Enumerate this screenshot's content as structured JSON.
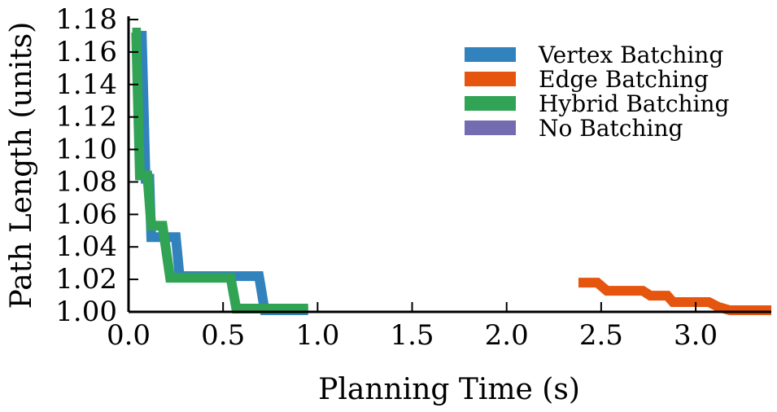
{
  "chart_data": {
    "type": "line",
    "title": "",
    "xlabel": "Planning Time (s)",
    "ylabel": "Path Length (units)",
    "xlim": [
      0.0,
      3.4
    ],
    "ylim": [
      1.0,
      1.18
    ],
    "x_ticks": [
      "0.0",
      "0.5",
      "1.0",
      "1.5",
      "2.0",
      "2.5",
      "3.0"
    ],
    "x_tick_values": [
      0.0,
      0.5,
      1.0,
      1.5,
      2.0,
      2.5,
      3.0
    ],
    "y_ticks": [
      "1.00",
      "1.02",
      "1.04",
      "1.06",
      "1.08",
      "1.10",
      "1.12",
      "1.14",
      "1.16",
      "1.18"
    ],
    "y_tick_values": [
      1.0,
      1.02,
      1.04,
      1.06,
      1.08,
      1.1,
      1.12,
      1.14,
      1.16,
      1.18
    ],
    "grid": false,
    "legend_position": "top-right",
    "series": [
      {
        "name": "Vertex Batching",
        "color": "#3182bd",
        "x": [
          0.05,
          0.07,
          0.09,
          0.11,
          0.12,
          0.14,
          0.25,
          0.27,
          0.69,
          0.72,
          0.95
        ],
        "y": [
          1.17,
          1.17,
          1.082,
          1.082,
          1.046,
          1.046,
          1.046,
          1.022,
          1.022,
          1.001,
          1.001
        ]
      },
      {
        "name": "Edge Batching",
        "color": "#e6550d",
        "x": [
          2.38,
          2.48,
          2.53,
          2.72,
          2.76,
          2.85,
          2.88,
          3.07,
          3.12,
          3.18,
          3.4
        ],
        "y": [
          1.018,
          1.018,
          1.013,
          1.013,
          1.01,
          1.01,
          1.006,
          1.006,
          1.003,
          1.001,
          1.001
        ]
      },
      {
        "name": "Hybrid Batching",
        "color": "#31a354",
        "x": [
          0.02,
          0.04,
          0.06,
          0.1,
          0.12,
          0.18,
          0.22,
          0.54,
          0.57,
          0.95
        ],
        "y": [
          1.172,
          1.172,
          1.084,
          1.084,
          1.053,
          1.053,
          1.021,
          1.021,
          1.002,
          1.002
        ]
      },
      {
        "name": "No Batching",
        "color": "#756bb1",
        "x": [],
        "y": []
      }
    ]
  }
}
